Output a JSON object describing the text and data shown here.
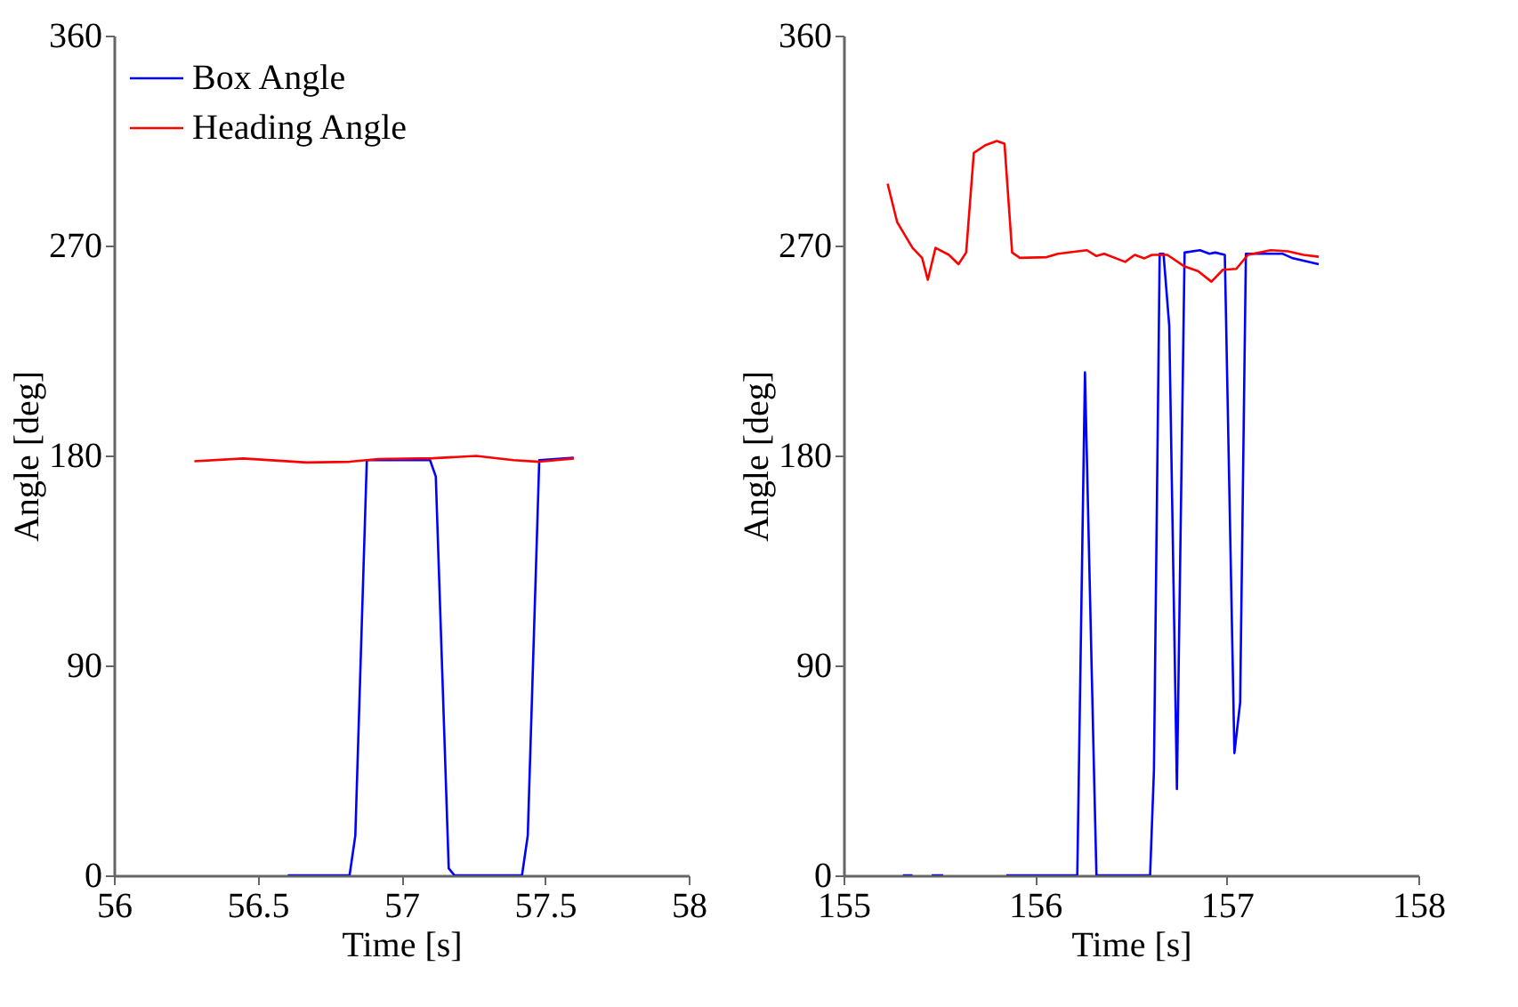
{
  "chart_data": [
    {
      "type": "line",
      "xlabel": "Time [s]",
      "ylabel": "Angle [deg]",
      "xlim": [
        56,
        58
      ],
      "xticks": [
        56,
        56.5,
        57,
        57.5,
        58
      ],
      "ylim": [
        0,
        360
      ],
      "yticks": [
        0,
        90,
        180,
        270,
        360
      ],
      "legend": "top left",
      "grid": false,
      "series": [
        {
          "name": "Box Angle",
          "color": "#0000ff",
          "x": [
            56.605,
            56.82,
            56.84,
            56.88,
            57.1,
            57.12,
            57.165,
            57.185,
            57.42,
            57.44,
            57.48,
            57.6
          ],
          "values": [
            0,
            0,
            17,
            178,
            178,
            171,
            3,
            0,
            0,
            17,
            178,
            179
          ]
        },
        {
          "name": "Heading Angle",
          "color": "#ff0000",
          "x": [
            56.28,
            56.45,
            56.67,
            56.82,
            56.92,
            57.11,
            57.26,
            57.39,
            57.48,
            57.6
          ],
          "values": [
            177.5,
            178.7,
            177,
            177.3,
            178.5,
            178.8,
            179.8,
            178,
            177.3,
            178.7
          ]
        }
      ]
    },
    {
      "type": "line",
      "xlabel": "Time [s]",
      "ylabel": "Angle [deg]",
      "xlim": [
        155,
        158
      ],
      "xticks": [
        155,
        156,
        157,
        158
      ],
      "ylim": [
        0,
        360
      ],
      "yticks": [
        0,
        90,
        180,
        270,
        360
      ],
      "grid": false,
      "series": [
        {
          "color": "#0000ff",
          "x": [
            155.31,
            155.36,
            155.4,
            155.46,
            155.52,
            155.6,
            155.85,
            156.22,
            156.26,
            156.31,
            156.32,
            156.6,
            156.62,
            156.65,
            156.67,
            156.7,
            156.74,
            156.78,
            156.86,
            156.91,
            156.94,
            156.99,
            157.04,
            157.07,
            157.1,
            157.29,
            157.34,
            157.48
          ],
          "values": [
            0,
            0,
            null,
            0,
            0,
            null,
            0,
            0,
            215.6,
            34.6,
            0,
            0,
            45,
            266.5,
            266.5,
            235.5,
            37,
            267,
            268,
            266.5,
            267,
            266,
            52.4,
            74,
            266.5,
            266.5,
            264.7,
            262
          ]
        },
        {
          "color": "#ff0000",
          "x": [
            155.23,
            155.28,
            155.36,
            155.41,
            155.44,
            155.48,
            155.55,
            155.6,
            155.64,
            155.68,
            155.74,
            155.8,
            155.84,
            155.88,
            155.92,
            156.06,
            156.12,
            156.27,
            156.32,
            156.36,
            156.47,
            156.52,
            156.57,
            156.61,
            156.69,
            156.78,
            156.85,
            156.92,
            156.98,
            157.05,
            157.11,
            157.23,
            157.32,
            157.4,
            157.48
          ],
          "values": [
            296.5,
            280,
            269,
            264.7,
            255.3,
            269,
            266,
            262,
            267,
            309.7,
            313,
            314.8,
            313.7,
            267,
            264.7,
            265,
            266.5,
            268,
            265.5,
            266.5,
            263,
            266,
            264.5,
            266,
            266,
            261,
            259,
            254.5,
            259.6,
            260,
            266,
            268,
            267.5,
            266,
            265.2
          ]
        }
      ]
    }
  ]
}
